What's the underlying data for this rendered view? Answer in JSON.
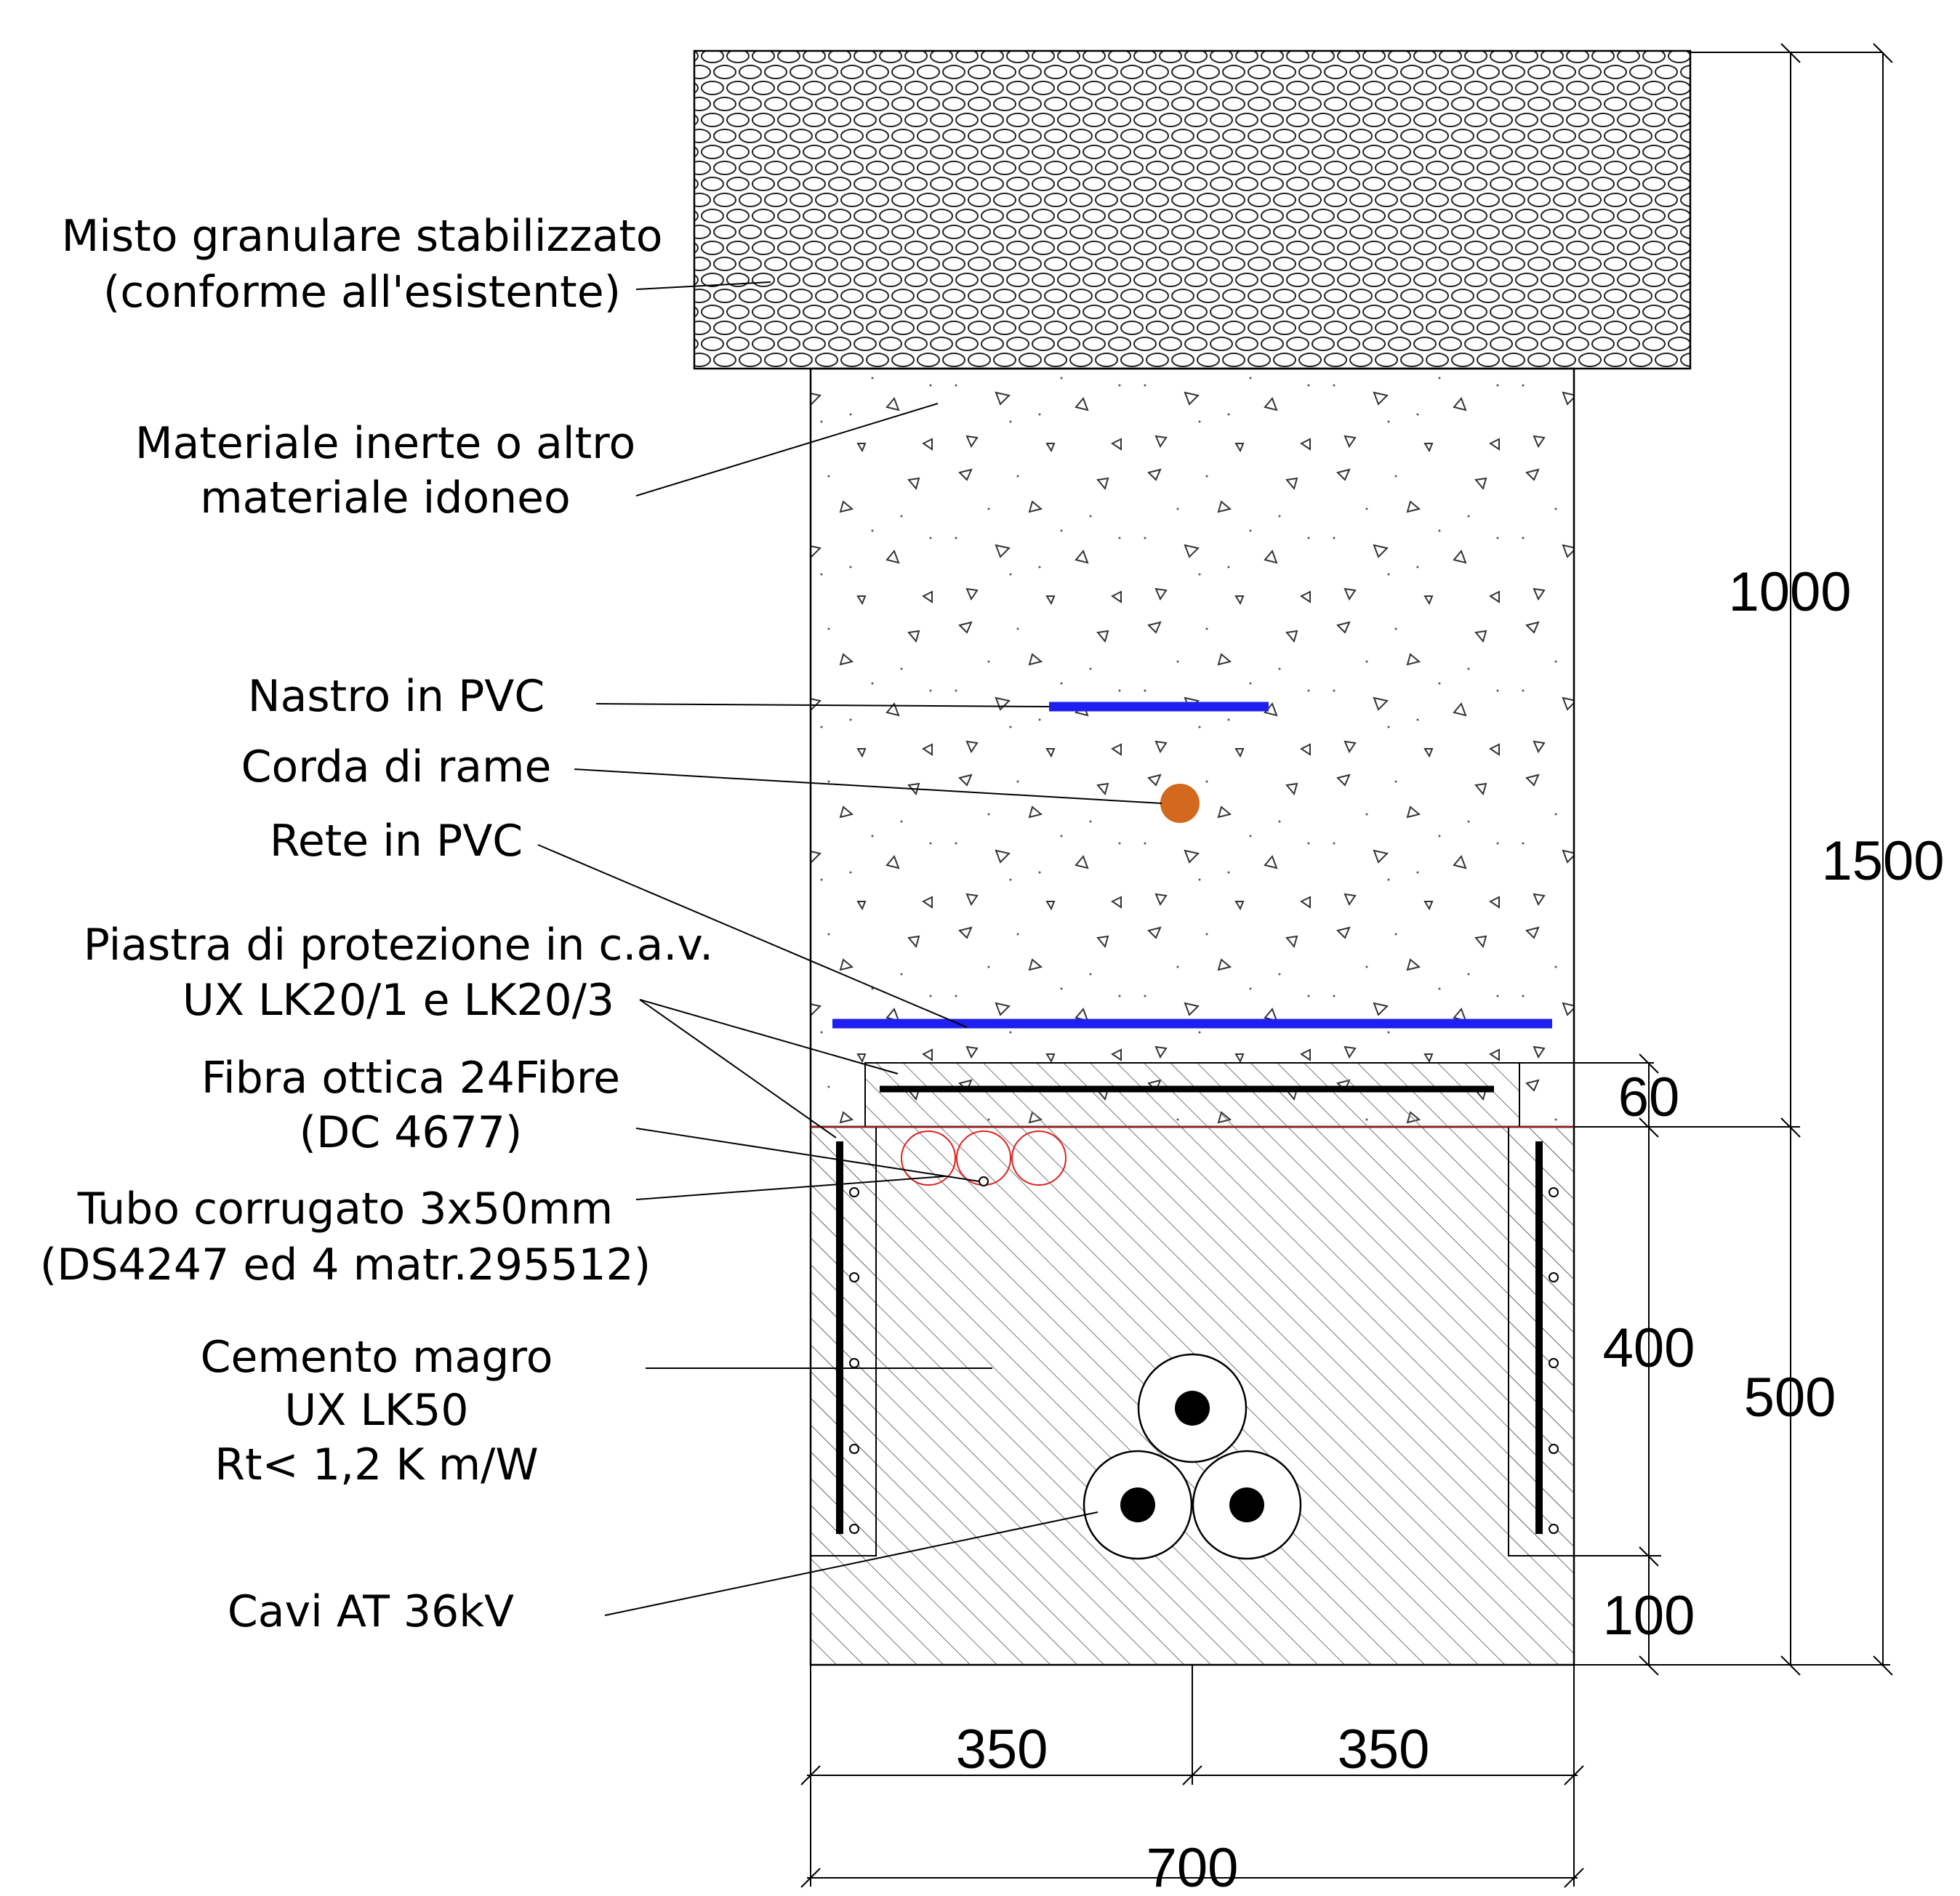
{
  "labels": {
    "misto_line1": "Misto granulare stabilizzato",
    "misto_line2": "(conforme all'esistente)",
    "inerte_line1": "Materiale inerte o altro",
    "inerte_line2": "materiale idoneo",
    "nastro": "Nastro in PVC",
    "corda": "Corda di rame",
    "rete": "Rete in PVC",
    "piastra_line1": "Piastra di protezione in c.a.v.",
    "piastra_line2": "UX LK20/1 e LK20/3",
    "fibra_line1": "Fibra ottica 24Fibre",
    "fibra_line2": "(DC 4677)",
    "tubo_line1": "Tubo corrugato 3x50mm",
    "tubo_line2": "(DS4247 ed 4 matr.295512)",
    "cemento_line1": "Cemento magro",
    "cemento_line2": "UX LK50",
    "cemento_line3": "Rt< 1,2 K m/W",
    "cavi": "Cavi AT 36kV"
  },
  "dimensions": {
    "d1000": "1000",
    "d1500": "1500",
    "d60": "60",
    "d400": "400",
    "d500": "500",
    "d100": "100",
    "d350_left": "350",
    "d350_right": "350",
    "d700": "700"
  },
  "colors": {
    "pvc_blue": "#1f1ff0",
    "copper": "#d2691e",
    "conduit_red": "#e02020",
    "line": "#000000"
  }
}
